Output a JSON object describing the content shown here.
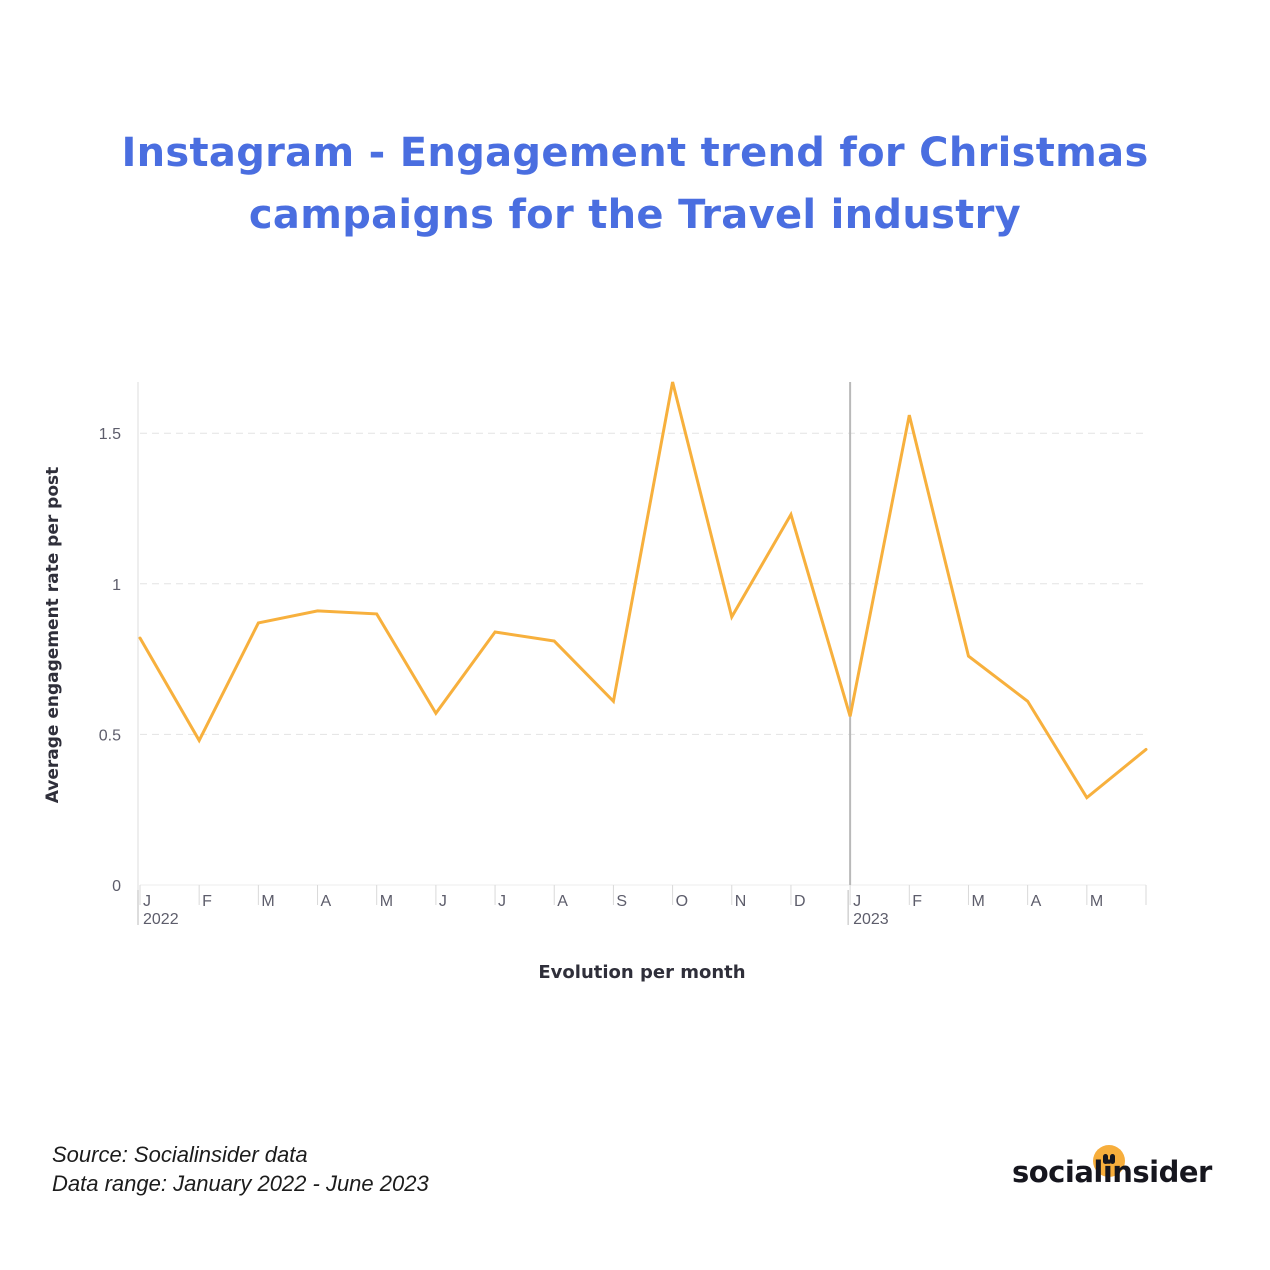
{
  "header": {
    "title_line1": "Instagram - Engagement trend for Christmas",
    "title_line2": "campaigns for the Travel industry"
  },
  "footer": {
    "source": "Source: Socialinsider data",
    "range": "Data range: January 2022 - June 2023"
  },
  "logo": {
    "text": "socialinsider"
  },
  "colors": {
    "title": "#4a6ee0",
    "line": "#f7b03d",
    "logo_dot": "#f7ae3c"
  },
  "chart_data": {
    "type": "line",
    "xlabel": "Evolution per month",
    "ylabel": "Average engagement rate per post",
    "ylim": [
      0,
      1.67
    ],
    "yticks": [
      0,
      0.5,
      1,
      1.5
    ],
    "ytick_labels": [
      "0",
      "0.5",
      "1",
      "1.5"
    ],
    "grid": "horizontal dashed",
    "x": [
      "2022-01",
      "2022-02",
      "2022-03",
      "2022-04",
      "2022-05",
      "2022-06",
      "2022-07",
      "2022-08",
      "2022-09",
      "2022-10",
      "2022-11",
      "2022-12",
      "2023-01",
      "2023-02",
      "2023-03",
      "2023-04",
      "2023-05",
      "2023-06"
    ],
    "month_labels": [
      "J",
      "F",
      "M",
      "A",
      "M",
      "J",
      "J",
      "A",
      "S",
      "O",
      "N",
      "D",
      "J",
      "F",
      "M",
      "A",
      "M",
      ""
    ],
    "year_labels": [
      {
        "index": 0,
        "label": "2022"
      },
      {
        "index": 12,
        "label": "2023"
      }
    ],
    "series": [
      {
        "values": [
          0.82,
          0.48,
          0.87,
          0.91,
          0.9,
          0.57,
          0.84,
          0.81,
          0.61,
          1.67,
          0.89,
          1.23,
          0.56,
          1.56,
          0.76,
          0.61,
          0.29,
          0.45
        ]
      }
    ]
  }
}
